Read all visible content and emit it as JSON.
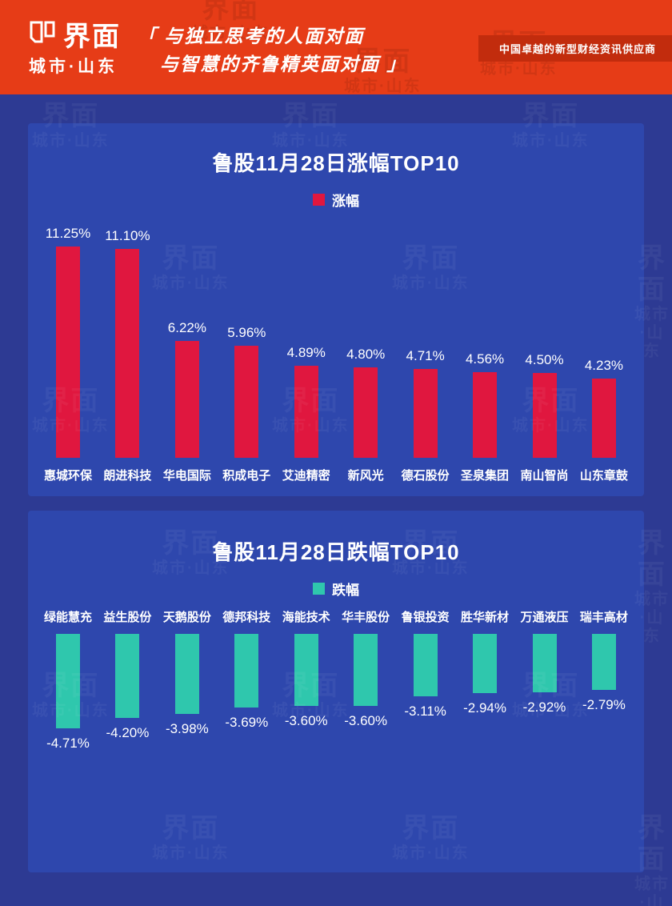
{
  "header": {
    "logo_text": "界面",
    "logo_subtext": "城市·山东",
    "tagline_line1": "「 与独立思考的人面对面",
    "tagline_line2": "与智慧的齐鲁精英面对面 」",
    "right_slogan": "中国卓越的新型财经资讯供应商"
  },
  "watermark": {
    "line1": "界面",
    "line2": "城市·山东"
  },
  "colors": {
    "header_red": "#e63c17",
    "ribbon_dark_red": "#c22c0d",
    "background_blue": "#2d3a93",
    "card_blue": "#2e47ad",
    "gain_red": "#e0173f",
    "loss_teal": "#2fc7ad",
    "text_white": "#ffffff"
  },
  "chart_data": [
    {
      "type": "bar",
      "title": "鲁股11月28日涨幅TOP10",
      "legend": "涨幅",
      "orientation": "up",
      "bar_color": "#e0173f",
      "unit": "%",
      "categories": [
        "惠城环保",
        "朗进科技",
        "华电国际",
        "积成电子",
        "艾迪精密",
        "新风光",
        "德石股份",
        "圣泉集团",
        "南山智尚",
        "山东章鼓"
      ],
      "values": [
        11.25,
        11.1,
        6.22,
        5.96,
        4.89,
        4.8,
        4.71,
        4.56,
        4.5,
        4.23
      ],
      "value_labels": [
        "11.25%",
        "11.10%",
        "6.22%",
        "5.96%",
        "4.89%",
        "4.80%",
        "4.71%",
        "4.56%",
        "4.50%",
        "4.23%"
      ],
      "legend_position": "top"
    },
    {
      "type": "bar",
      "title": "鲁股11月28日跌幅TOP10",
      "legend": "跌幅",
      "orientation": "down",
      "bar_color": "#2fc7ad",
      "unit": "%",
      "categories": [
        "绿能慧充",
        "益生股份",
        "天鹅股份",
        "德邦科技",
        "海能技术",
        "华丰股份",
        "鲁银投资",
        "胜华新材",
        "万通液压",
        "瑞丰高材"
      ],
      "values": [
        -4.71,
        -4.2,
        -3.98,
        -3.69,
        -3.6,
        -3.6,
        -3.11,
        -2.94,
        -2.92,
        -2.79
      ],
      "value_labels": [
        "-4.71%",
        "-4.20%",
        "-3.98%",
        "-3.69%",
        "-3.60%",
        "-3.60%",
        "-3.11%",
        "-2.94%",
        "-2.92%",
        "-2.79%"
      ],
      "legend_position": "top"
    }
  ]
}
